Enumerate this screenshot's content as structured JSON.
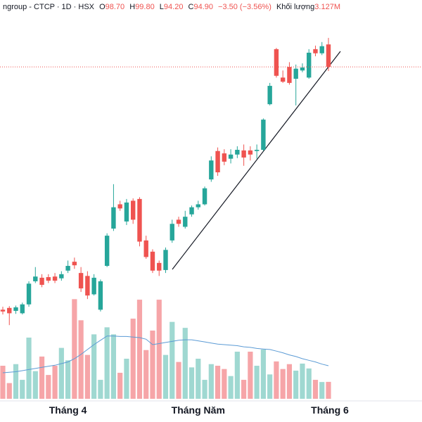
{
  "chart_data": {
    "type": "candlestick",
    "header": {
      "symbol": "ngroup - CTCP · 1D · HSX",
      "open_label": "O",
      "open": "98.70",
      "high_label": "H",
      "high": "99.80",
      "low_label": "L",
      "low": "94.20",
      "close_label": "C",
      "close": "94.90",
      "change": "−3.50 (−3.56%)",
      "volume_label": "Khối lượng",
      "volume": "3.127M"
    },
    "categories": [
      null,
      null,
      null,
      null,
      null,
      null,
      null,
      null,
      null,
      null,
      "Tháng 4",
      null,
      null,
      null,
      null,
      null,
      null,
      null,
      null,
      null,
      null,
      null,
      null,
      null,
      null,
      null,
      null,
      null,
      null,
      null,
      "Tháng Năm",
      null,
      null,
      null,
      null,
      null,
      null,
      null,
      null,
      null,
      null,
      null,
      null,
      null,
      null,
      null,
      null,
      null,
      null,
      null,
      "Tháng 6"
    ],
    "open": [
      53.9,
      54.2,
      53.7,
      53.3,
      54.8,
      58.7,
      59.3,
      59.4,
      59.5,
      59.2,
      60.5,
      62.0,
      60.1,
      59.6,
      56.5,
      53.9,
      61.3,
      67.6,
      71.7,
      68.8,
      72.3,
      72.6,
      65.6,
      63.7,
      61.8,
      60.6,
      65.6,
      69.1,
      67.9,
      70.0,
      71.2,
      71.7,
      75.9,
      80.7,
      80.3,
      79.4,
      80.1,
      80.8,
      80.8,
      80.7,
      80.9,
      88.6,
      97.9,
      93.1,
      94.9,
      92.9,
      94.3,
      93.1,
      97.9,
      97.2,
      98.7
    ],
    "high": [
      54.4,
      54.5,
      54.6,
      55.1,
      58.7,
      61.1,
      59.9,
      59.9,
      60.1,
      60.4,
      62.2,
      62.7,
      61.1,
      60.4,
      59.9,
      59.0,
      66.8,
      75.1,
      72.3,
      72.6,
      72.7,
      72.9,
      66.4,
      64.1,
      62.2,
      64.4,
      69.1,
      69.6,
      70.6,
      71.5,
      72.3,
      74.7,
      79.8,
      81.3,
      81.0,
      81.0,
      81.5,
      81.8,
      81.5,
      81.8,
      86.2,
      92.2,
      98.1,
      94.3,
      95.7,
      95.3,
      95.5,
      97.9,
      98.5,
      99.1,
      99.8
    ],
    "low": [
      53.1,
      51.3,
      53.2,
      53.1,
      54.4,
      58.4,
      57.7,
      58.4,
      58.4,
      58.8,
      60.1,
      60.8,
      56.9,
      55.7,
      56.3,
      53.6,
      61.1,
      67.2,
      70.6,
      68.2,
      68.4,
      64.6,
      62.5,
      60.1,
      59.6,
      60.1,
      65.2,
      67.9,
      67.6,
      69.6,
      70.8,
      71.5,
      75.5,
      76.5,
      78.3,
      78.6,
      79.5,
      78.2,
      79.1,
      79.4,
      80.7,
      88.4,
      93.1,
      92.2,
      91.9,
      88.4,
      94.0,
      92.9,
      96.7,
      96.9,
      94.2
    ],
    "close": [
      53.6,
      53.3,
      54.3,
      54.8,
      58.3,
      59.5,
      58.1,
      58.8,
      58.8,
      59.9,
      61.3,
      61.4,
      57.5,
      56.3,
      59.3,
      58.7,
      66.4,
      71.2,
      71.0,
      72.0,
      69.1,
      65.4,
      62.8,
      60.5,
      60.5,
      64.0,
      68.4,
      68.4,
      69.6,
      71.2,
      71.7,
      74.4,
      79.1,
      77.1,
      78.9,
      80.1,
      80.9,
      79.6,
      80.1,
      80.9,
      86.0,
      91.7,
      93.4,
      92.4,
      92.2,
      94.6,
      94.8,
      97.3,
      97.2,
      98.4,
      94.9
    ],
    "volume": [
      6.1,
      2.9,
      6.4,
      3.5,
      11.3,
      5.1,
      7.8,
      4.4,
      6.1,
      9.4,
      7.1,
      18.4,
      14.5,
      8.1,
      11.9,
      3.5,
      13.2,
      11.9,
      4.8,
      7.4,
      14.8,
      18.3,
      9.0,
      12.6,
      18.3,
      8.1,
      14.2,
      6.8,
      13.1,
      5.8,
      7.4,
      3.5,
      6.4,
      6.1,
      5.5,
      4.2,
      8.7,
      3.5,
      8.7,
      6.1,
      9.1,
      4.5,
      6.9,
      5.5,
      6.4,
      5.2,
      6.5,
      5.6,
      3.5,
      3.1,
      3.127
    ],
    "volume_ma": [
      4.8,
      4.9,
      5.0,
      5.2,
      5.4,
      5.6,
      5.8,
      6.0,
      6.2,
      6.5,
      6.8,
      7.4,
      8.2,
      9.1,
      10.0,
      10.8,
      11.6,
      11.6,
      11.5,
      11.5,
      11.4,
      11.3,
      11.0,
      10.0,
      10.2,
      10.4,
      10.6,
      10.8,
      10.9,
      10.9,
      10.7,
      10.5,
      10.3,
      10.1,
      10.0,
      9.9,
      9.8,
      9.6,
      9.5,
      9.3,
      9.2,
      9.1,
      8.8,
      8.5,
      8.1,
      7.8,
      7.4,
      7.1,
      6.8,
      6.4,
      6.1
    ],
    "ylim": [
      38.5,
      106.2
    ],
    "volume_ylim": [
      0,
      20
    ],
    "up_color": "#26a69a",
    "down_color": "#ef5350",
    "volume_up_color": "#9fd8d1",
    "volume_down_color": "#f6a5a8",
    "volume_ma_color": "#5b9bd5",
    "last_price_line": true
  }
}
